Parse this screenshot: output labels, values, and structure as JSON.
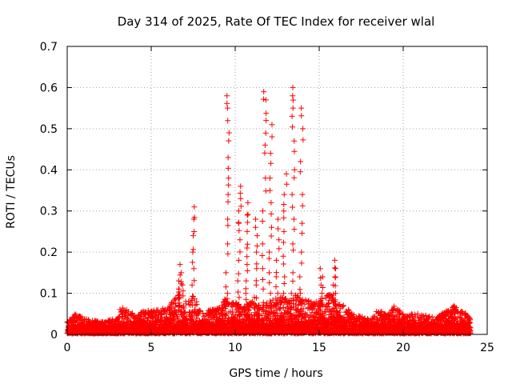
{
  "chart_data": {
    "type": "scatter",
    "title": "Day 314 of 2025, Rate Of TEC Index for receiver wlal",
    "xlabel": "GPS time / hours",
    "ylabel": "ROTI / TECUs",
    "xlim": [
      0,
      25
    ],
    "ylim": [
      0,
      0.7
    ],
    "xticks": [
      0,
      5,
      10,
      15,
      20,
      25
    ],
    "yticks": [
      0,
      0.1,
      0.2,
      0.3,
      0.4,
      0.5,
      0.6,
      0.7
    ],
    "xtick_labels": [
      "0",
      "5",
      "10",
      "15",
      "20",
      "25"
    ],
    "ytick_labels": [
      "0",
      "0.1",
      "0.2",
      "0.3",
      "0.4",
      "0.5",
      "0.6",
      "0.7"
    ],
    "grid": true,
    "marker": "+",
    "color": "#ff0000",
    "x_data_range": [
      0,
      24
    ],
    "series": [
      {
        "baseline_envelope": {
          "x": [
            0,
            0.5,
            1,
            2,
            3,
            3.2,
            4,
            5,
            5.5,
            6,
            6.5,
            6.8,
            7,
            7.5,
            8,
            9,
            9.5,
            10,
            10.5,
            11,
            11.5,
            12,
            12.5,
            13,
            13.5,
            14,
            14.5,
            15,
            15.5,
            16,
            16.5,
            17,
            18,
            18.5,
            19,
            19.5,
            20,
            21,
            22,
            22.5,
            23,
            23.5,
            24
          ],
          "y": [
            0.03,
            0.05,
            0.04,
            0.03,
            0.04,
            0.07,
            0.05,
            0.06,
            0.06,
            0.07,
            0.09,
            0.14,
            0.08,
            0.1,
            0.05,
            0.07,
            0.09,
            0.08,
            0.07,
            0.08,
            0.07,
            0.08,
            0.09,
            0.09,
            0.1,
            0.09,
            0.08,
            0.08,
            0.1,
            0.09,
            0.07,
            0.05,
            0.04,
            0.06,
            0.05,
            0.07,
            0.05,
            0.05,
            0.04,
            0.06,
            0.07,
            0.06,
            0.04
          ]
        },
        "spikes": [
          {
            "x": 6.7,
            "y": [
              0.09,
              0.11,
              0.13,
              0.15,
              0.17
            ]
          },
          {
            "x": 7.5,
            "y": [
              0.12,
              0.16,
              0.2,
              0.24,
              0.28,
              0.31
            ]
          },
          {
            "x": 9.5,
            "y": [
              0.1,
              0.15,
              0.22,
              0.28,
              0.34,
              0.38,
              0.43,
              0.49,
              0.55,
              0.58
            ]
          },
          {
            "x": 10.2,
            "y": [
              0.09,
              0.13,
              0.18,
              0.23,
              0.27,
              0.3,
              0.33,
              0.36
            ]
          },
          {
            "x": 10.7,
            "y": [
              0.1,
              0.13,
              0.17,
              0.21,
              0.25,
              0.29,
              0.32
            ]
          },
          {
            "x": 11.2,
            "y": [
              0.09,
              0.12,
              0.16,
              0.2,
              0.24,
              0.28
            ]
          },
          {
            "x": 11.7,
            "y": [
              0.11,
              0.16,
              0.22,
              0.3,
              0.38,
              0.46,
              0.52,
              0.57,
              0.59
            ]
          },
          {
            "x": 12.1,
            "y": [
              0.1,
              0.15,
              0.2,
              0.26,
              0.32,
              0.38,
              0.44,
              0.51
            ]
          },
          {
            "x": 12.5,
            "y": [
              0.1,
              0.14,
              0.18,
              0.23,
              0.28
            ]
          },
          {
            "x": 12.9,
            "y": [
              0.1,
              0.14,
              0.19,
              0.25,
              0.3,
              0.34,
              0.39
            ]
          },
          {
            "x": 13.4,
            "y": [
              0.1,
              0.15,
              0.22,
              0.28,
              0.34,
              0.4,
              0.47,
              0.53,
              0.58,
              0.6
            ]
          },
          {
            "x": 13.9,
            "y": [
              0.1,
              0.14,
              0.2,
              0.27,
              0.34,
              0.42,
              0.5,
              0.55
            ]
          },
          {
            "x": 15.1,
            "y": [
              0.08,
              0.1,
              0.12,
              0.14,
              0.16
            ]
          },
          {
            "x": 15.9,
            "y": [
              0.08,
              0.1,
              0.12,
              0.14,
              0.16,
              0.18
            ]
          }
        ]
      }
    ]
  }
}
